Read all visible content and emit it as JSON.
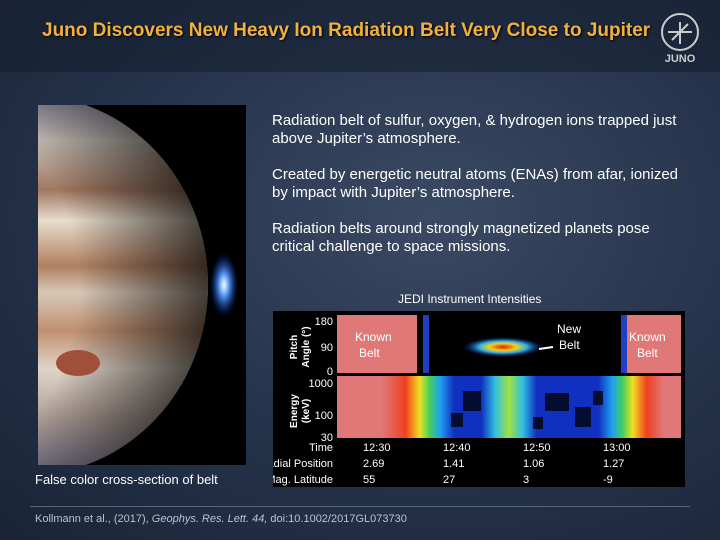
{
  "header": {
    "title": "Juno Discovers New Heavy Ion Radiation Belt Very Close to Jupiter",
    "logo": "JUNO"
  },
  "paragraphs": [
    "Radiation belt of sulfur, oxygen, & hydrogen ions trapped just above Jupiter’s atmosphere.",
    "Created by energetic neutral atoms (ENAs) from afar, ionized by impact with Jupiter’s atmosphere.",
    "Radiation belts around strongly magnetized planets pose critical challenge to space missions."
  ],
  "figure": {
    "caption": "False color cross-section of belt"
  },
  "spectrogram": {
    "title": "JEDI Instrument Intensities",
    "panels": [
      {
        "axis_label": [
          "Pitch",
          "Angle (°)"
        ],
        "ticks": [
          "180",
          "90",
          "0"
        ]
      },
      {
        "axis_label": [
          "Energy",
          "(keV)"
        ],
        "ticks": [
          "1000",
          "100",
          "30"
        ]
      }
    ],
    "annotations": [
      [
        "Known",
        "Belt"
      ],
      [
        "New",
        "Belt"
      ],
      [
        "Known",
        "Belt"
      ]
    ],
    "table": {
      "rows": [
        [
          "Time",
          "12:30",
          "12:40",
          "12:50",
          "13:00"
        ],
        [
          "Radial Position",
          "2.69",
          "1.41",
          "1.06",
          "1.27"
        ],
        [
          "Mag. Latitude",
          "55",
          "27",
          "3",
          "-9"
        ]
      ]
    }
  },
  "citation": {
    "authors": "Kollmann et al., (2017), ",
    "journal": "Geophys. Res. Lett. 44,",
    "doi": " doi:10.1002/2017GL073730"
  }
}
